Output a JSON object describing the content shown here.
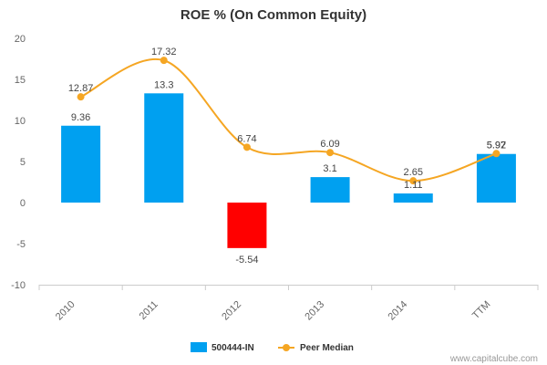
{
  "chart_data": {
    "type": "bar",
    "title": "ROE % (On Common Equity)",
    "categories": [
      "2010",
      "2011",
      "2012",
      "2013",
      "2014",
      "TTM"
    ],
    "series": [
      {
        "name": "500444-IN",
        "kind": "bar",
        "color": "#00a0f0",
        "negative_color": "#ff0000",
        "values": [
          9.36,
          13.3,
          -5.54,
          3.1,
          1.11,
          5.92
        ]
      },
      {
        "name": "Peer Median",
        "kind": "line",
        "color": "#f5a623",
        "values": [
          12.87,
          17.32,
          6.74,
          6.09,
          2.65,
          5.97
        ]
      }
    ],
    "bar_labels": [
      "9.36",
      "13.3",
      "-5.54",
      "3.1",
      "1.11",
      "5.92"
    ],
    "line_labels": [
      "12.87",
      "17.32",
      "6.74",
      "6.09",
      "2.65",
      "5.97"
    ],
    "yticks": [
      "-10",
      "-5",
      "0",
      "5",
      "10",
      "15",
      "20"
    ],
    "ylim": [
      -10,
      20
    ],
    "grid": false,
    "legend_position": "bottom-center"
  },
  "credit": "www.capitalcube.com"
}
